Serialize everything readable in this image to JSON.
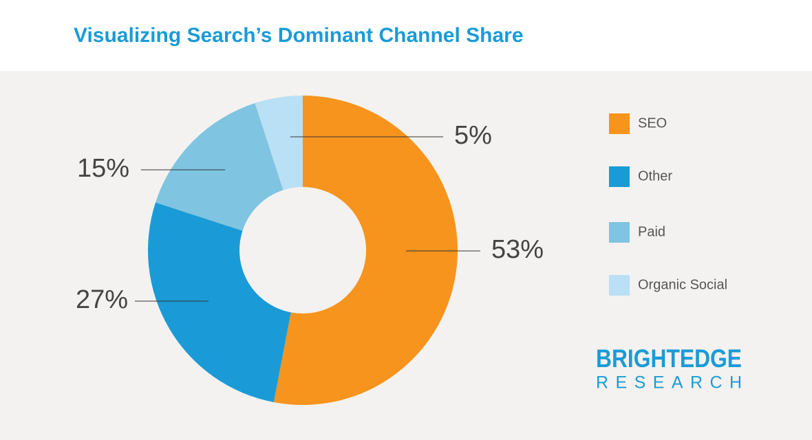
{
  "chart_data": {
    "type": "donut",
    "title": "Visualizing Search’s Dominant Channel Share",
    "categories": [
      "SEO",
      "Other",
      "Paid",
      "Organic Social"
    ],
    "values": [
      53,
      27,
      15,
      5
    ],
    "value_labels": [
      "53%",
      "27%",
      "15%",
      "5%"
    ],
    "colors": [
      "#f7941d",
      "#1a9bd7",
      "#7fc4e0",
      "#b9e0f4"
    ],
    "legend": "right",
    "brand": "BRIGHTEDGE",
    "brand_sub": "RESEARCH"
  }
}
